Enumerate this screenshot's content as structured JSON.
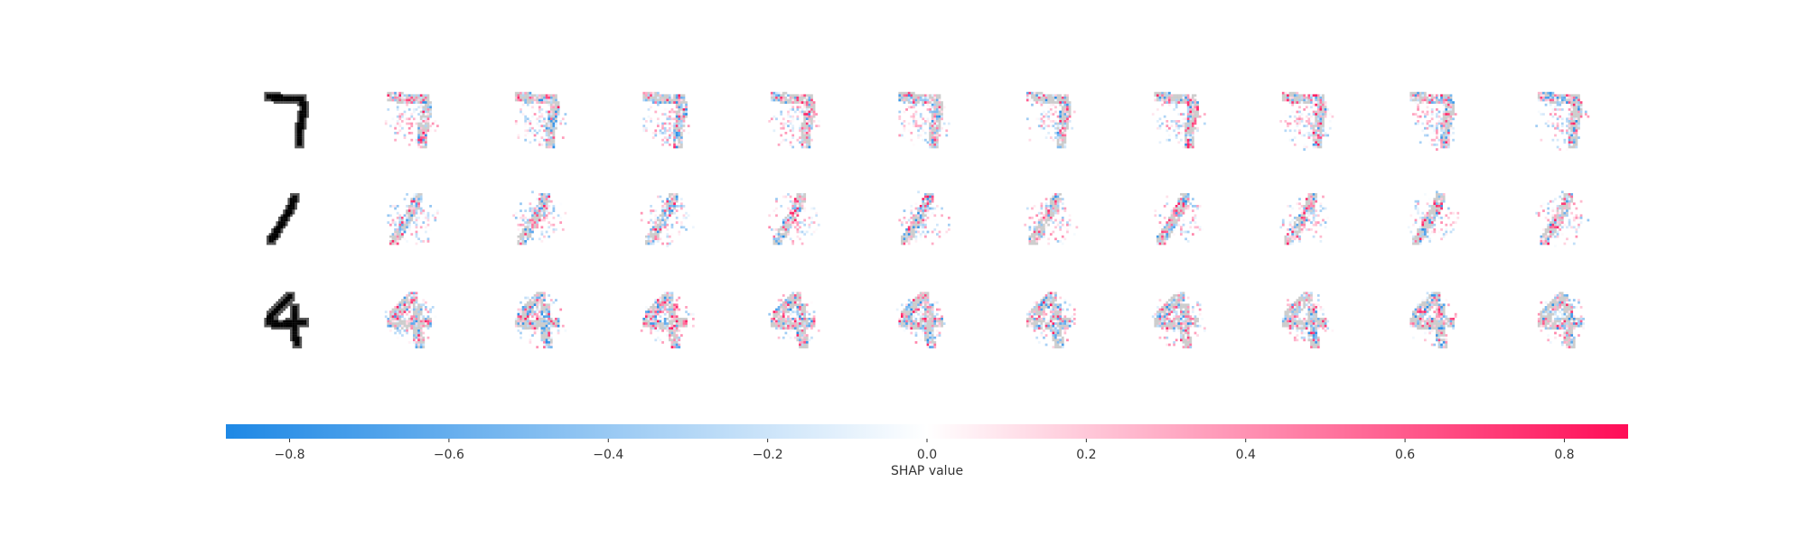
{
  "chart_data": {
    "type": "heatmap",
    "title": "",
    "rows": [
      {
        "input_digit": "7",
        "attribution_maps": 10
      },
      {
        "input_digit": "1",
        "attribution_maps": 10
      },
      {
        "input_digit": "4",
        "attribution_maps": 10
      }
    ],
    "colorbar": {
      "label": "SHAP value",
      "range": [
        -0.88,
        0.88
      ],
      "ticks": [
        -0.8,
        -0.6,
        -0.4,
        -0.2,
        0.0,
        0.2,
        0.4,
        0.6,
        0.8
      ],
      "tick_labels": [
        "−0.8",
        "−0.6",
        "−0.4",
        "−0.2",
        "0.0",
        "0.2",
        "0.4",
        "0.6",
        "0.8"
      ],
      "low_color": "#1e88e5",
      "mid_color": "#ffffff",
      "high_color": "#ff0d57"
    }
  }
}
